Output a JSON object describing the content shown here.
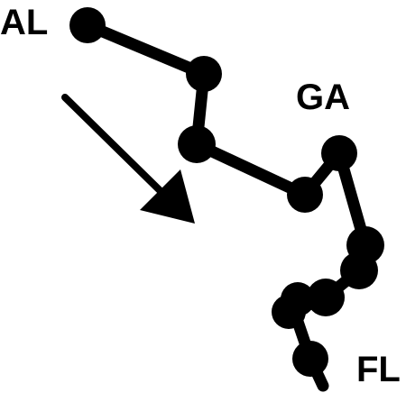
{
  "labels": {
    "start": "AL",
    "middle": "GA",
    "end": "FL"
  },
  "colors": {
    "ink": "#000000",
    "background": "#ffffff"
  },
  "icons": {
    "direction": "arrow-down-right-icon"
  }
}
